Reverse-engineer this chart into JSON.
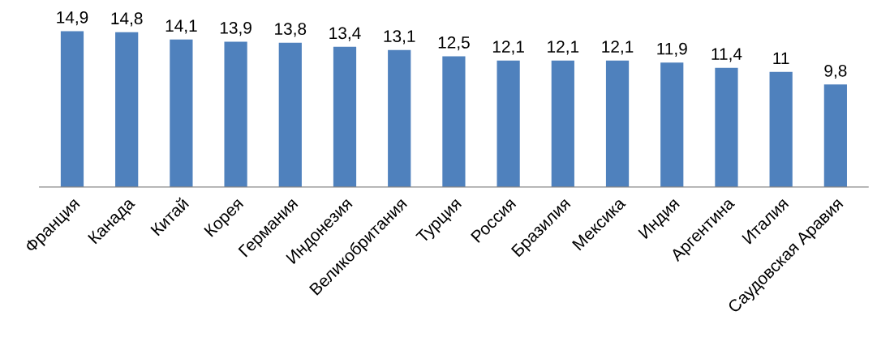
{
  "chart_data": {
    "type": "bar",
    "categories": [
      "Франция",
      "Канада",
      "Китай",
      "Корея",
      "Германия",
      "Индонезия",
      "Великобритания",
      "Турция",
      "Россия",
      "Бразилия",
      "Мексика",
      "Индия",
      "Аргентина",
      "Италия",
      "Саудовская Аравия"
    ],
    "values": [
      14.9,
      14.8,
      14.1,
      13.9,
      13.8,
      13.4,
      13.1,
      12.5,
      12.1,
      12.1,
      12.1,
      11.9,
      11.4,
      11,
      9.8
    ],
    "value_labels": [
      "14,9",
      "14,8",
      "14,1",
      "13,9",
      "13,8",
      "13,4",
      "13,1",
      "12,5",
      "12,1",
      "12,1",
      "12,1",
      "11,9",
      "11,4",
      "11",
      "9,8"
    ],
    "color": "#4f81bd",
    "tick_labels": "x",
    "grid": false,
    "legend": false
  }
}
